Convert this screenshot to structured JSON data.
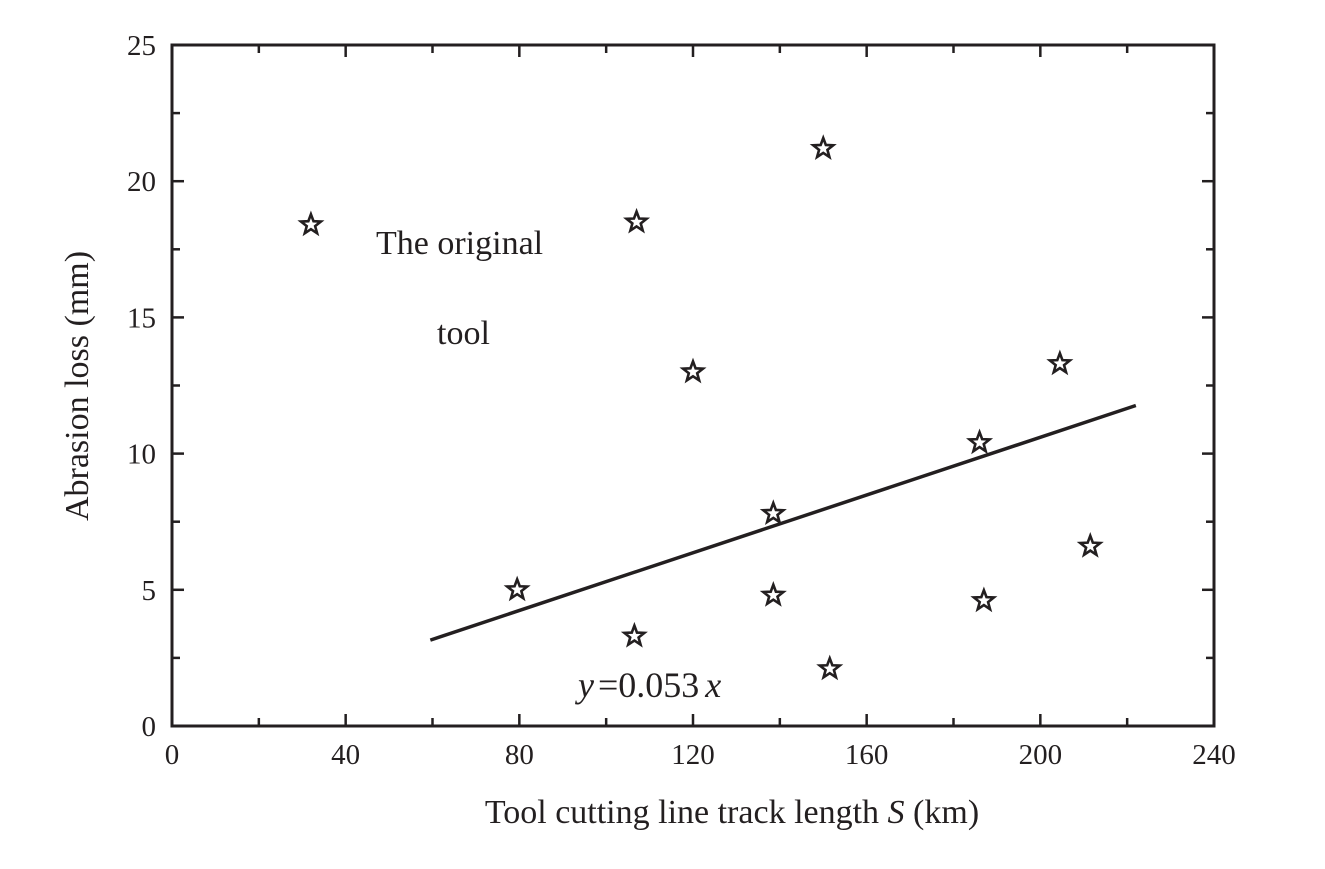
{
  "chart_data": {
    "type": "scatter",
    "xlabel": "Tool cutting line track length",
    "xlabel_var": "S",
    "xlabel_unit": "(km)",
    "ylabel": "Abrasion loss (mm)",
    "xlim": [
      0,
      240
    ],
    "ylim": [
      0,
      25
    ],
    "x_ticks": [
      0,
      40,
      80,
      120,
      160,
      200,
      240
    ],
    "y_ticks": [
      0,
      5,
      10,
      15,
      20,
      25
    ],
    "x_ticklabels": [
      "0",
      "40",
      "80",
      "120",
      "160",
      "200",
      "240"
    ],
    "y_ticklabels": [
      "0",
      "5",
      "10",
      "15",
      "20",
      "25"
    ],
    "grid": false,
    "marker": "star",
    "points": [
      {
        "x": 32,
        "y": 18.4
      },
      {
        "x": 79.5,
        "y": 5.0
      },
      {
        "x": 106.5,
        "y": 3.3
      },
      {
        "x": 107,
        "y": 18.5
      },
      {
        "x": 120,
        "y": 13.0
      },
      {
        "x": 138.5,
        "y": 7.8
      },
      {
        "x": 138.5,
        "y": 4.8
      },
      {
        "x": 150,
        "y": 21.2
      },
      {
        "x": 151.5,
        "y": 2.1
      },
      {
        "x": 186,
        "y": 10.4
      },
      {
        "x": 187,
        "y": 4.6
      },
      {
        "x": 204.5,
        "y": 13.3
      },
      {
        "x": 211.5,
        "y": 6.6
      }
    ],
    "fit": {
      "slope": 0.053,
      "x_range": [
        59.5,
        222
      ],
      "equation": {
        "y": "y",
        "rest": "=0.053",
        "x": "x"
      }
    },
    "annotations": [
      "The original",
      "tool"
    ]
  }
}
